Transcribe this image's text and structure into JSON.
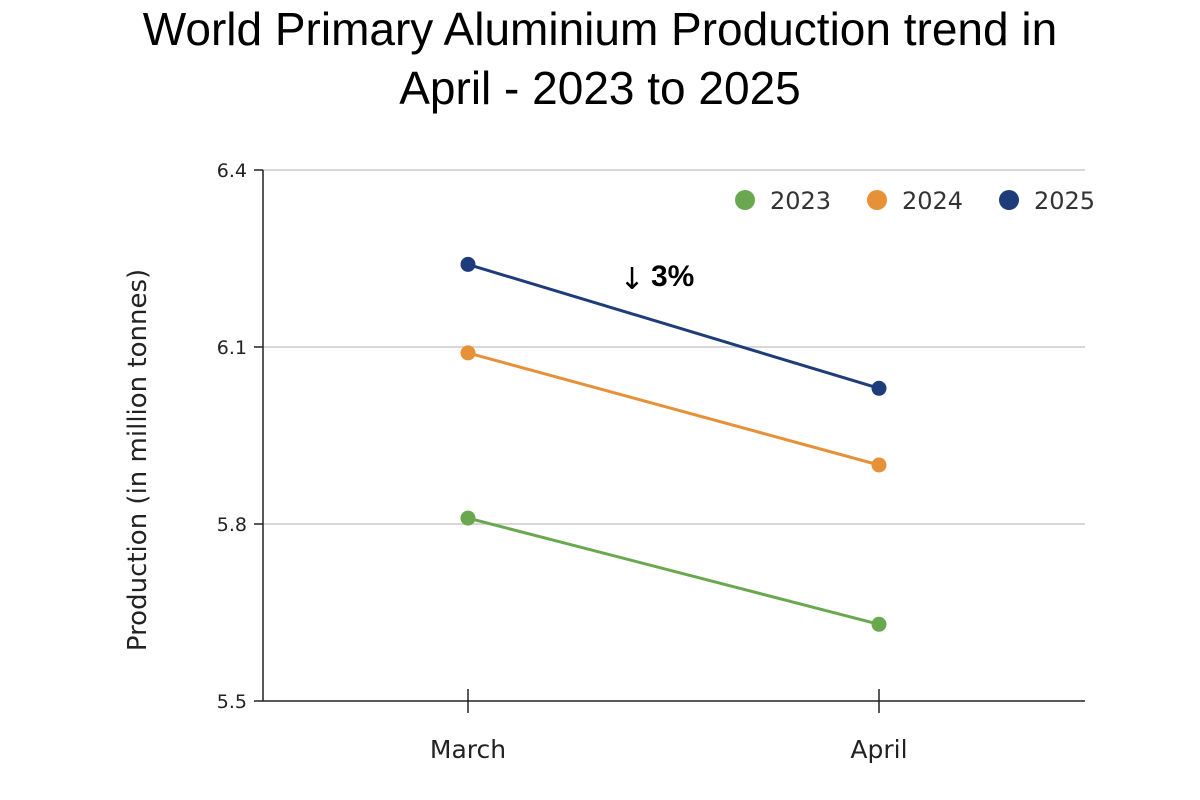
{
  "chart_data": {
    "type": "line",
    "title_lines": [
      "World Primary Aluminium Production trend in",
      "April - 2023 to 2025"
    ],
    "xlabel": "",
    "ylabel": "Production (in million tonnes)",
    "categories": [
      "March",
      "April"
    ],
    "ylim": [
      5.5,
      6.4
    ],
    "yticks": [
      5.5,
      5.8,
      6.1,
      6.4
    ],
    "ytick_labels": [
      "5.5",
      "5.8",
      "6.1",
      "6.4"
    ],
    "grid": true,
    "legend_position": "top-right",
    "series": [
      {
        "name": "2023",
        "color": "#6aa84f",
        "values": [
          5.81,
          5.63
        ]
      },
      {
        "name": "2024",
        "color": "#e69138",
        "values": [
          6.09,
          5.9
        ]
      },
      {
        "name": "2025",
        "color": "#1f3c7a",
        "values": [
          6.24,
          6.03
        ]
      }
    ],
    "annotation": {
      "arrow": "↓",
      "text": "3%"
    }
  }
}
